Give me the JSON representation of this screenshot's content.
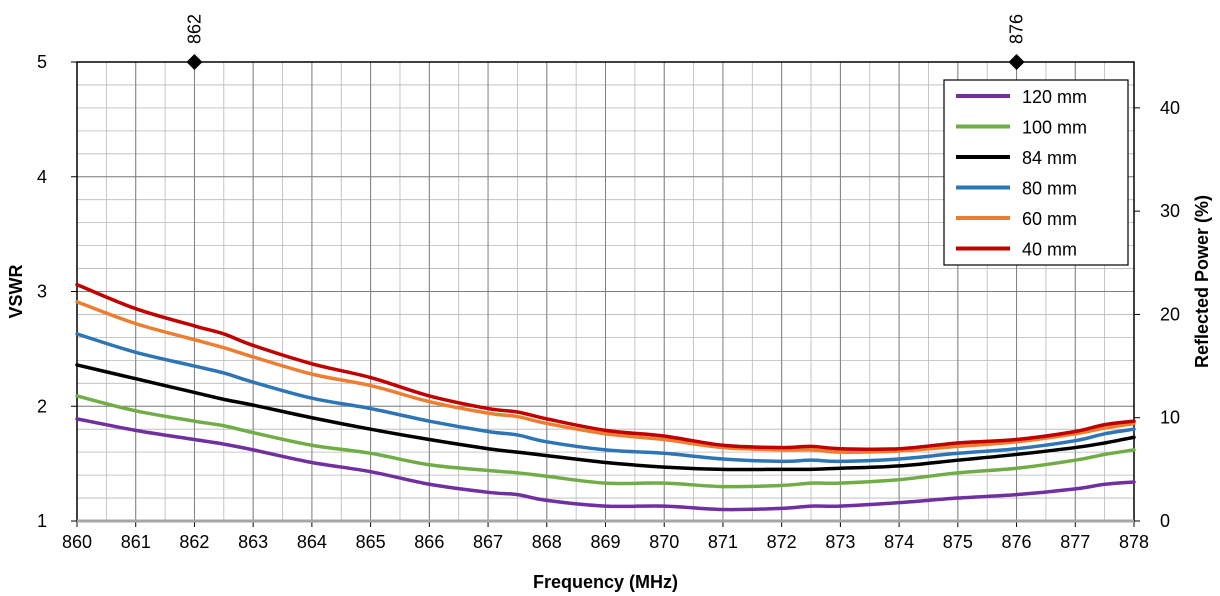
{
  "chart_data": {
    "type": "line",
    "xlabel": "Frequency (MHz)",
    "ylabel": "VSWR",
    "y2label": "Reflected Power (%)",
    "xlim": [
      860,
      878
    ],
    "ylim": [
      1,
      5
    ],
    "y2lim": [
      0,
      44.44
    ],
    "x_ticks": [
      "860",
      "861",
      "862",
      "863",
      "864",
      "865",
      "866",
      "867",
      "868",
      "869",
      "870",
      "871",
      "872",
      "873",
      "874",
      "875",
      "876",
      "877",
      "878"
    ],
    "y_ticks": [
      "1",
      "2",
      "3",
      "4",
      "5"
    ],
    "y2_ticks": [
      "0",
      "10",
      "20",
      "30",
      "40"
    ],
    "x_minor_step": 0.5,
    "y_minor_step": 0.2,
    "grid": true,
    "legend_position": "top-right",
    "markers": [
      {
        "x": 862,
        "label": "862"
      },
      {
        "x": 876,
        "label": "876"
      }
    ],
    "x": [
      860,
      861,
      862,
      862.5,
      863,
      864,
      865,
      866,
      867,
      867.5,
      868,
      869,
      870,
      871,
      872,
      872.5,
      873,
      874,
      875,
      876,
      877,
      877.5,
      878
    ],
    "series": [
      {
        "name": "120 mm",
        "color": "#7030a0",
        "values": [
          1.89,
          1.79,
          1.71,
          1.67,
          1.62,
          1.51,
          1.43,
          1.32,
          1.25,
          1.23,
          1.18,
          1.13,
          1.13,
          1.1,
          1.11,
          1.13,
          1.13,
          1.16,
          1.2,
          1.23,
          1.28,
          1.32,
          1.34
        ]
      },
      {
        "name": "100 mm",
        "color": "#70ad47",
        "values": [
          2.09,
          1.96,
          1.87,
          1.83,
          1.77,
          1.66,
          1.59,
          1.49,
          1.44,
          1.42,
          1.39,
          1.33,
          1.33,
          1.3,
          1.31,
          1.33,
          1.33,
          1.36,
          1.42,
          1.46,
          1.53,
          1.58,
          1.62
        ]
      },
      {
        "name": "84 mm",
        "color": "#000000",
        "values": [
          2.36,
          2.24,
          2.12,
          2.06,
          2.01,
          1.9,
          1.8,
          1.71,
          1.63,
          1.6,
          1.57,
          1.51,
          1.47,
          1.45,
          1.45,
          1.45,
          1.46,
          1.48,
          1.53,
          1.58,
          1.64,
          1.68,
          1.73
        ]
      },
      {
        "name": "80 mm",
        "color": "#2e75b6",
        "values": [
          2.63,
          2.47,
          2.35,
          2.29,
          2.21,
          2.07,
          1.98,
          1.87,
          1.78,
          1.75,
          1.69,
          1.62,
          1.59,
          1.54,
          1.52,
          1.53,
          1.52,
          1.54,
          1.59,
          1.63,
          1.7,
          1.76,
          1.8
        ]
      },
      {
        "name": "60 mm",
        "color": "#ed7d31",
        "values": [
          2.91,
          2.72,
          2.58,
          2.51,
          2.43,
          2.28,
          2.18,
          2.04,
          1.94,
          1.91,
          1.85,
          1.76,
          1.71,
          1.64,
          1.62,
          1.62,
          1.6,
          1.61,
          1.65,
          1.69,
          1.76,
          1.81,
          1.85
        ]
      },
      {
        "name": "40 mm",
        "color": "#c00000",
        "values": [
          3.06,
          2.85,
          2.7,
          2.63,
          2.53,
          2.37,
          2.25,
          2.09,
          1.98,
          1.95,
          1.89,
          1.79,
          1.74,
          1.66,
          1.64,
          1.65,
          1.63,
          1.63,
          1.68,
          1.71,
          1.78,
          1.84,
          1.87
        ]
      }
    ]
  }
}
